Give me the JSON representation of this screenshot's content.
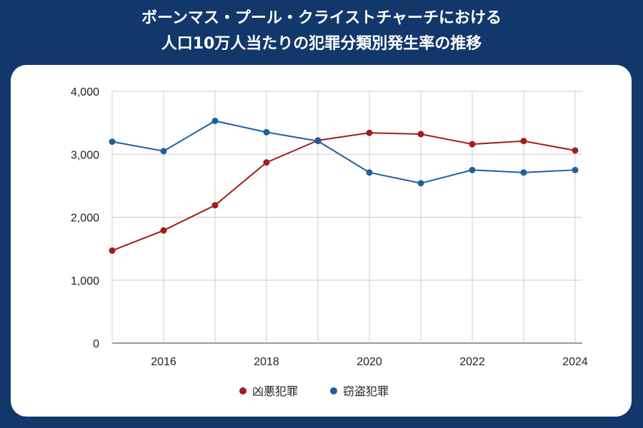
{
  "title_lines": [
    "ボーンマス・プール・クライストチャーチにおける",
    "人口10万人当たりの犯罪分類別発生率の推移"
  ],
  "chart_data": {
    "type": "line",
    "title": "ボーンマス・プール・クライストチャーチにおける人口10万人当たりの犯罪分類別発生率の推移",
    "x": [
      2015,
      2016,
      2017,
      2018,
      2019,
      2020,
      2021,
      2022,
      2023,
      2024
    ],
    "x_tick_labels": [
      "2016",
      "2018",
      "2020",
      "2022",
      "2024"
    ],
    "y_tick_labels": [
      "0",
      "1,000",
      "2,000",
      "3,000",
      "4,000"
    ],
    "ylim": [
      0,
      4000
    ],
    "xlim": [
      2015,
      2024
    ],
    "grid": true,
    "legend_position": "bottom",
    "series": [
      {
        "name": "凶悪犯罪",
        "color": "#a31b1b",
        "values": [
          1470,
          1790,
          2190,
          2870,
          3220,
          3340,
          3320,
          3160,
          3210,
          3060
        ]
      },
      {
        "name": "窃盗犯罪",
        "color": "#1f5f9e",
        "values": [
          3200,
          3050,
          3530,
          3350,
          3210,
          2710,
          2540,
          2750,
          2710,
          2750
        ]
      }
    ]
  }
}
